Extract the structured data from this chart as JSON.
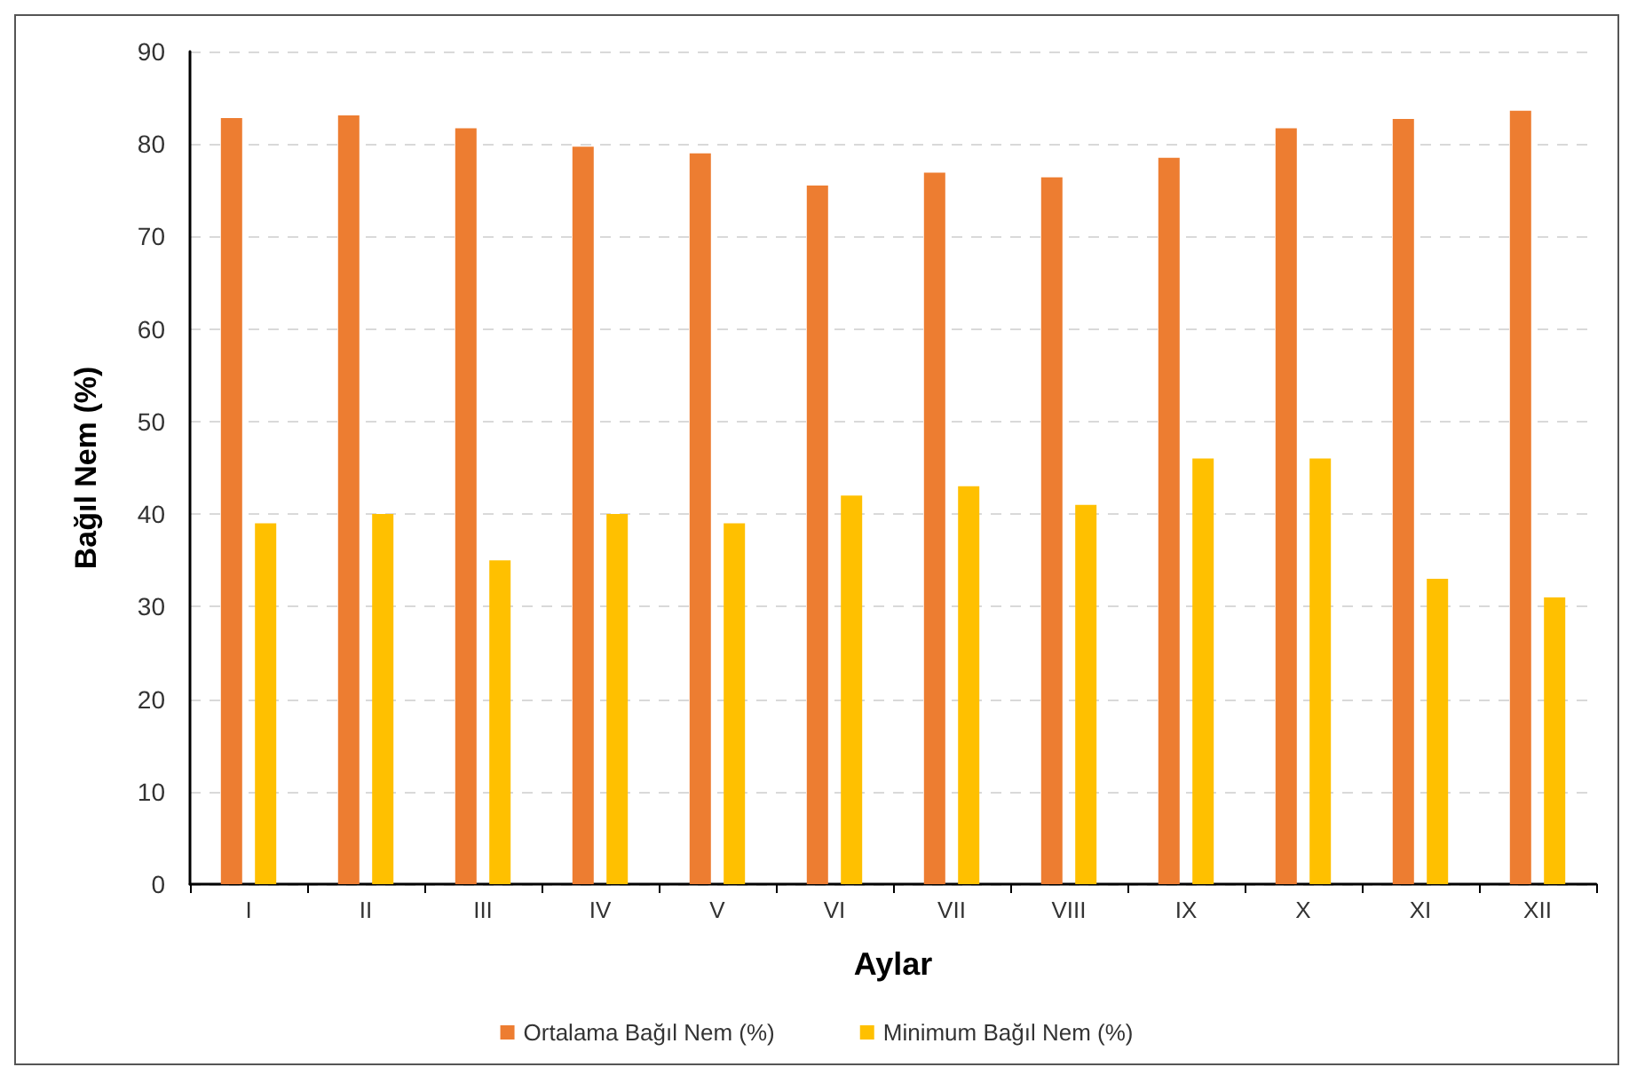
{
  "chart_data": {
    "type": "bar",
    "xlabel": "Aylar",
    "ylabel": "Bağıl Nem (%)",
    "categories": [
      "I",
      "II",
      "III",
      "IV",
      "V",
      "VI",
      "VII",
      "VIII",
      "IX",
      "X",
      "XI",
      "XII"
    ],
    "series": [
      {
        "name": "Ortalama Bağıl Nem (%)",
        "color": "#ed7d31",
        "values": [
          82.8,
          83.1,
          81.7,
          79.7,
          79.0,
          75.5,
          76.9,
          76.4,
          78.5,
          81.7,
          82.7,
          83.6
        ]
      },
      {
        "name": "Minimum Bağıl Nem (%)",
        "color": "#ffc000",
        "values": [
          39,
          40,
          35,
          40,
          39,
          42,
          43,
          41,
          46,
          46,
          33,
          31
        ]
      }
    ],
    "ylim": [
      0,
      90
    ],
    "yticks": [
      0,
      10,
      20,
      30,
      40,
      50,
      60,
      70,
      80,
      90
    ],
    "grid": "y",
    "legend": "bottom"
  }
}
